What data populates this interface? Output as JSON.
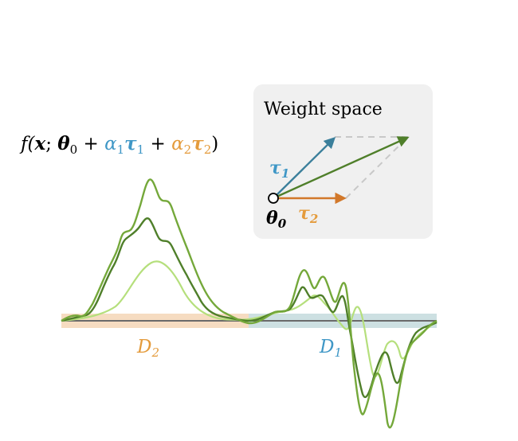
{
  "formula": {
    "prefix": "f(",
    "x": "x",
    "sep": "; ",
    "theta": "θ",
    "theta_sub": "0",
    "plus1": " + ",
    "alpha1": "α",
    "alpha1_sub": "1",
    "tau1": "τ",
    "tau1_sub": "1",
    "plus2": " + ",
    "alpha2": "α",
    "alpha2_sub": "2",
    "tau2": "τ",
    "tau2_sub": "2",
    "suffix": ")"
  },
  "weight_space": {
    "title": "Weight space",
    "theta0_label": "θ",
    "theta0_sub": "0",
    "tau1_label": "τ",
    "tau1_sub": "1",
    "tau2_label": "τ",
    "tau2_sub": "2"
  },
  "domains": {
    "d2_label": "D",
    "d2_sub": "2",
    "d1_label": "D",
    "d1_sub": "1"
  },
  "colors": {
    "blue": "#3f97c6",
    "blue_dark": "#3b7f9b",
    "orange": "#e49b3c",
    "orange_arrow": "#d2782a",
    "green_dark": "#4f7f2a",
    "green_mid": "#74a83a",
    "green_light": "#b5df7c",
    "band_orange": "#f6dcc1",
    "band_blue": "#cde0e2",
    "panel": "#f0f0f0"
  }
}
